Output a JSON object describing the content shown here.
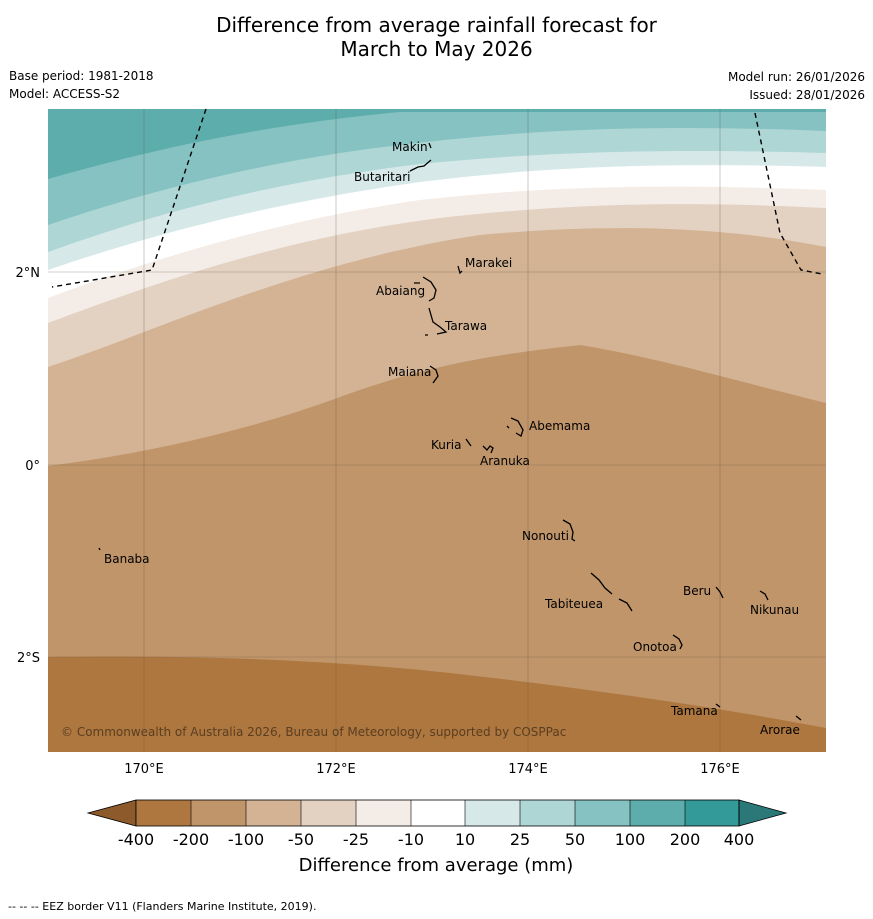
{
  "title": {
    "line1": "Difference from average rainfall forecast for",
    "line2": "March to May 2026"
  },
  "meta": {
    "base_period": "Base period: 1981-2018",
    "model": "Model: ACCESS-S2",
    "model_run": "Model run: 26/01/2026",
    "issued": "Issued: 28/01/2026"
  },
  "axes": {
    "lat_labels": [
      "2°N",
      "0°",
      "2°S"
    ],
    "lon_labels": [
      "170°E",
      "172°E",
      "174°E",
      "176°E"
    ]
  },
  "places": [
    "Makin",
    "Butaritari",
    "Marakei",
    "Abaiang",
    "Tarawa",
    "Maiana",
    "Abemama",
    "Kuria",
    "Aranuka",
    "Nonouti",
    "Banaba",
    "Beru",
    "Tabiteuea",
    "Nikunau",
    "Onotoa",
    "Tamana",
    "Arorae"
  ],
  "copyright": "© Commonwealth of Australia 2026, Bureau of Meteorology, supported by COSPPac",
  "legend": {
    "title": "Difference from average (mm)",
    "labels": [
      "-400",
      "-200",
      "-100",
      "-50",
      "-25",
      "-10",
      "10",
      "25",
      "50",
      "100",
      "200",
      "400"
    ],
    "colors": [
      "#8c5a2b",
      "#ad773f",
      "#c0956a",
      "#d3b394",
      "#e3d1c1",
      "#f4ece6",
      "#ffffff",
      "#d6e9e8",
      "#add6d5",
      "#85c2c1",
      "#5dadac",
      "#349999",
      "#2a7878"
    ]
  },
  "footer": "--  --  -- EEZ border V11 (Flanders Marine Institute, 2019)."
}
